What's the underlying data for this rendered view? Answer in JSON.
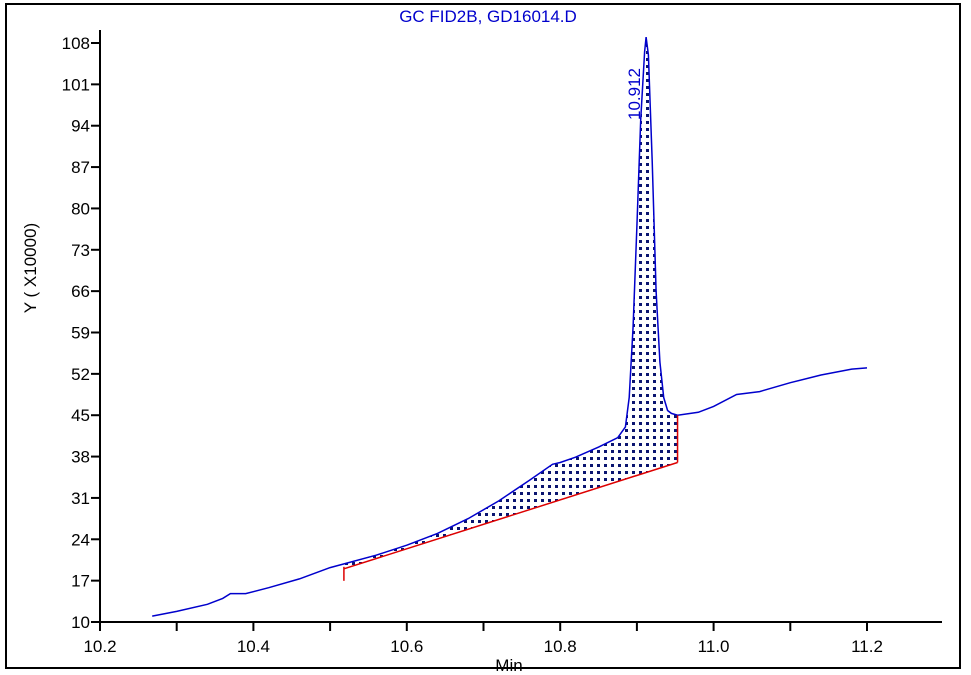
{
  "chart_data": {
    "type": "line",
    "title": "GC FID2B, GD16014.D",
    "xlabel": "Min",
    "ylabel": "Y ( X10000)",
    "xlim": [
      10.2,
      11.3
    ],
    "ylim": [
      10,
      110
    ],
    "x_ticks": [
      10.2,
      10.4,
      10.6,
      10.8,
      11.0,
      11.2
    ],
    "x_tick_labels": [
      "10.2",
      "10.4",
      "10.6",
      "10.8",
      "11.0",
      "11.2"
    ],
    "y_ticks": [
      10,
      17,
      24,
      31,
      38,
      45,
      52,
      59,
      66,
      73,
      80,
      87,
      94,
      101,
      108
    ],
    "y_tick_labels": [
      "10",
      "17",
      "24",
      "31",
      "38",
      "45",
      "52",
      "59",
      "66",
      "73",
      "80",
      "87",
      "94",
      "101",
      "108"
    ],
    "series": [
      {
        "color": "#0000cc",
        "x": [
          10.268,
          10.3,
          10.34,
          10.36,
          10.37,
          10.39,
          10.42,
          10.46,
          10.5,
          10.52,
          10.56,
          10.6,
          10.64,
          10.68,
          10.72,
          10.76,
          10.79,
          10.8,
          10.82,
          10.85,
          10.875,
          10.885,
          10.89,
          10.895,
          10.9,
          10.905,
          10.91,
          10.912,
          10.915,
          10.92,
          10.925,
          10.93,
          10.935,
          10.94,
          10.945,
          10.953,
          10.98,
          11.0,
          11.03,
          11.06,
          11.1,
          11.14,
          11.18,
          11.2
        ],
        "y": [
          11.0,
          11.8,
          13.0,
          14.0,
          14.8,
          14.8,
          15.8,
          17.3,
          19.2,
          19.9,
          21.3,
          23.0,
          25.0,
          27.5,
          30.5,
          34.0,
          36.7,
          37.0,
          37.9,
          39.6,
          41.2,
          43.0,
          48.0,
          60.0,
          77.0,
          95.0,
          106.5,
          109.0,
          106.0,
          88.0,
          66.0,
          54.0,
          48.0,
          45.8,
          45.3,
          45.0,
          45.5,
          46.5,
          48.5,
          49.0,
          50.5,
          51.8,
          52.8,
          53.0
        ]
      }
    ],
    "baseline": {
      "color": "#dd0000",
      "x": [
        10.518,
        10.953
      ],
      "y": [
        19.0,
        37.0
      ]
    },
    "peak_label": "10.912",
    "grid": false
  }
}
